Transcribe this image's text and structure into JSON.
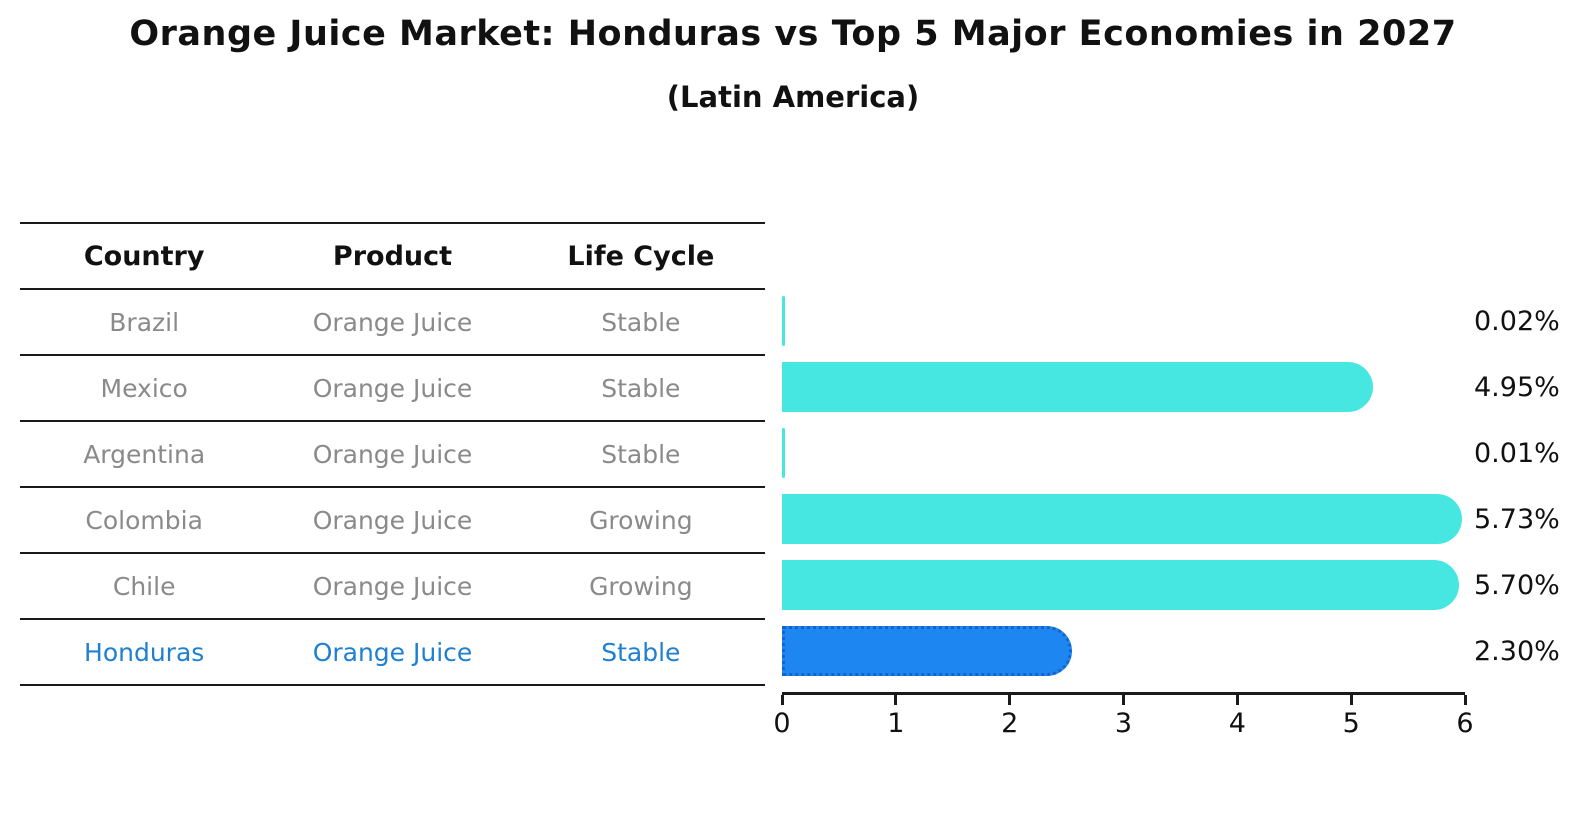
{
  "title": "Orange Juice Market: Honduras vs Top 5 Major Economies in 2027",
  "subtitle": "(Latin America)",
  "table": {
    "headers": {
      "country": "Country",
      "product": "Product",
      "life_cycle": "Life Cycle"
    },
    "rows": [
      {
        "country": "Brazil",
        "product": "Orange Juice",
        "life_cycle": "Stable",
        "highlighted": false
      },
      {
        "country": "Mexico",
        "product": "Orange Juice",
        "life_cycle": "Stable",
        "highlighted": false
      },
      {
        "country": "Argentina",
        "product": "Orange Juice",
        "life_cycle": "Stable",
        "highlighted": false
      },
      {
        "country": "Colombia",
        "product": "Orange Juice",
        "life_cycle": "Growing",
        "highlighted": false
      },
      {
        "country": "Chile",
        "product": "Orange Juice",
        "life_cycle": "Growing",
        "highlighted": false
      },
      {
        "country": "Honduras",
        "product": "Orange Juice",
        "life_cycle": "Stable",
        "highlighted": true
      }
    ]
  },
  "chart_data": {
    "type": "bar",
    "orientation": "horizontal",
    "title": "Orange Juice Market: Honduras vs Top 5 Major Economies in 2027",
    "subtitle": "(Latin America)",
    "categories": [
      "Brazil",
      "Mexico",
      "Argentina",
      "Colombia",
      "Chile",
      "Honduras"
    ],
    "values": [
      0.02,
      4.95,
      0.01,
      5.73,
      5.7,
      2.3
    ],
    "value_labels": [
      "0.02%",
      "4.95%",
      "0.01%",
      "5.73%",
      "5.70%",
      "2.30%"
    ],
    "unit": "%",
    "xlim": [
      0,
      6
    ],
    "x_ticks": [
      "0",
      "1",
      "2",
      "3",
      "4",
      "5",
      "6"
    ],
    "grid": false,
    "legend": false,
    "bar_color": "#46e7e0",
    "highlight_category": "Honduras",
    "highlight_bar_color": "#1e86f0",
    "highlight_border_color": "#1565c8",
    "highlight_text_color": "#1f7fd1"
  },
  "colors": {
    "background": "#ffffff",
    "title_text": "#111111",
    "table_line": "#1a1a1a",
    "row_text": "#8a8a8a",
    "axis": "#1a1a1a"
  }
}
